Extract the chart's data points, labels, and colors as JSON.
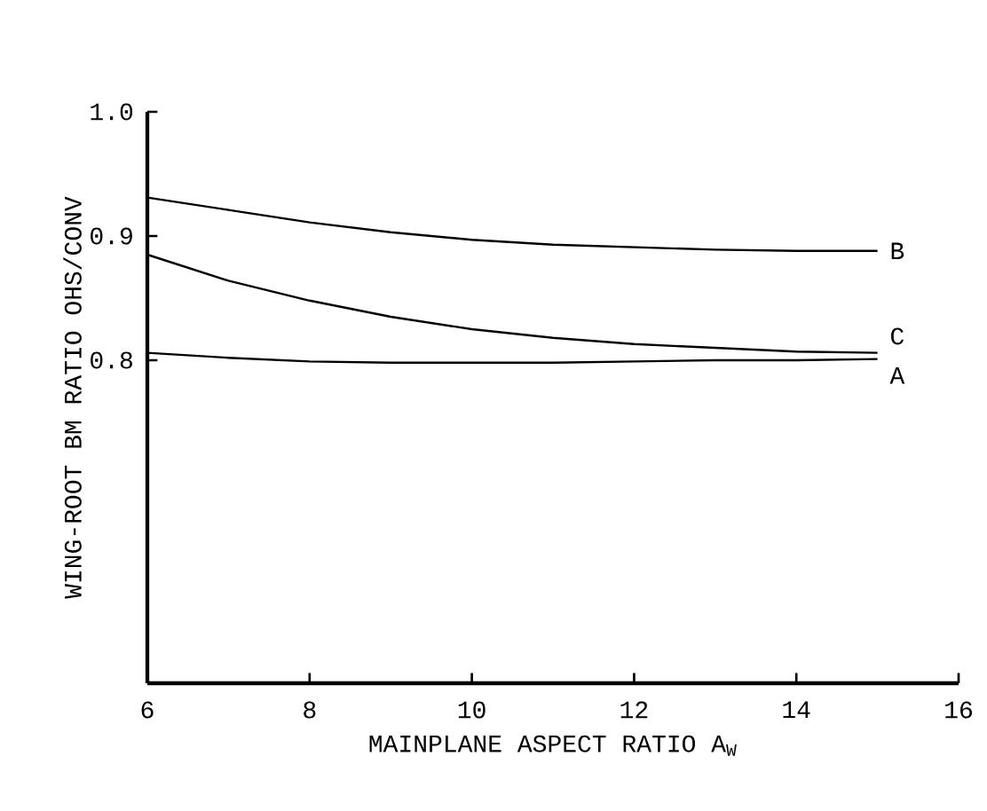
{
  "chart_data": {
    "type": "line",
    "xlabel": "MAINPLANE ASPECT RATIO A$_{W}$",
    "ylabel": "WING-ROOT BM RATIO  OHS/CONV",
    "x": [
      6,
      7,
      8,
      9,
      10,
      11,
      12,
      13,
      14,
      15
    ],
    "series": [
      {
        "name": "A",
        "color": "#000000",
        "values": [
          0.806,
          0.802,
          0.799,
          0.798,
          0.798,
          0.798,
          0.799,
          0.8,
          0.8,
          0.801
        ]
      },
      {
        "name": "B",
        "color": "#000000",
        "values": [
          0.931,
          0.921,
          0.911,
          0.903,
          0.897,
          0.893,
          0.891,
          0.889,
          0.888,
          0.888
        ]
      },
      {
        "name": "C",
        "color": "#000000",
        "values": [
          0.885,
          0.864,
          0.848,
          0.835,
          0.825,
          0.818,
          0.813,
          0.81,
          0.807,
          0.806
        ]
      }
    ],
    "xlim": [
      6,
      16
    ],
    "xticks": [
      6,
      8,
      10,
      12,
      14,
      16
    ],
    "ylim": [
      0.54,
      1.0
    ],
    "yticks": [
      0.8,
      0.9,
      {
        "value": 1.0,
        "label": "1.0"
      }
    ],
    "grid": false,
    "legend": false,
    "marker": "none",
    "line_style": "solid"
  }
}
